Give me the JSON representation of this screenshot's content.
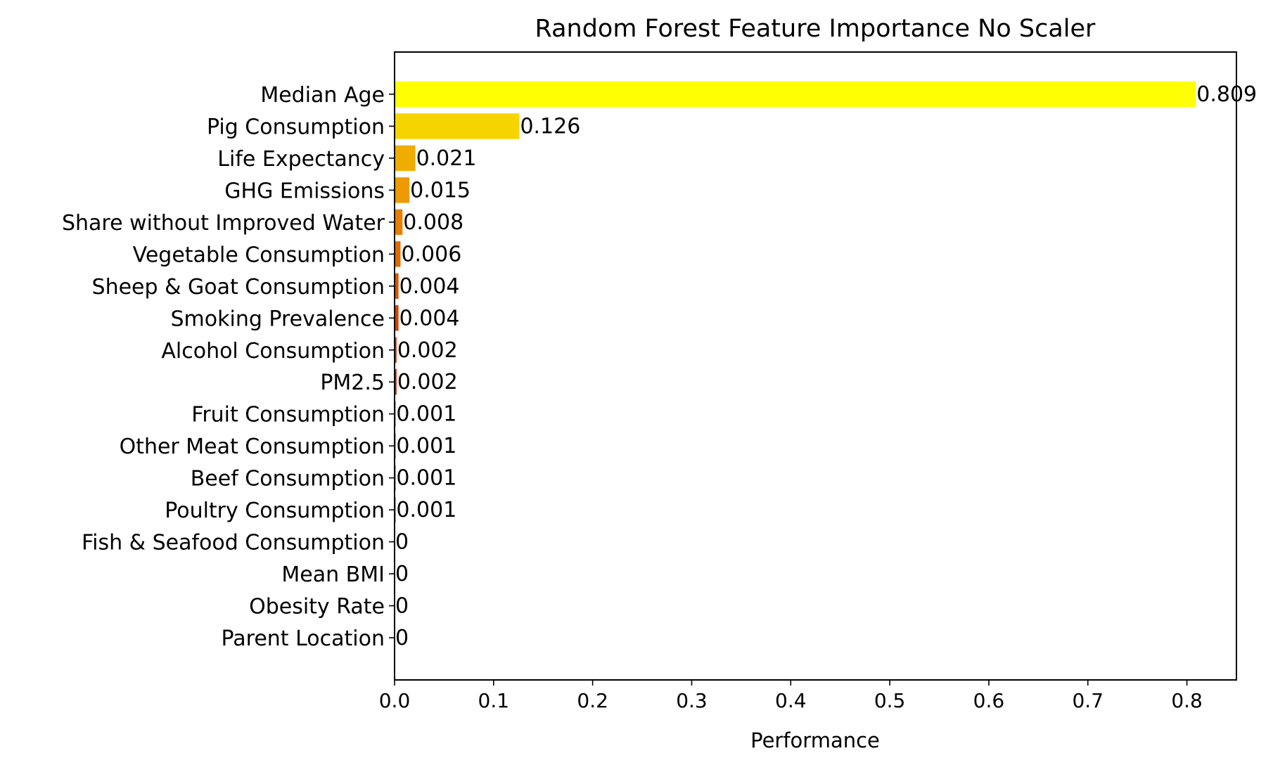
{
  "chart_data": {
    "type": "bar",
    "orientation": "horizontal",
    "title": "Random Forest Feature Importance No Scaler",
    "xlabel": "Performance",
    "ylabel": "",
    "xlim": [
      0,
      0.85
    ],
    "xticks": [
      "0.0",
      "0.1",
      "0.2",
      "0.3",
      "0.4",
      "0.5",
      "0.6",
      "0.7",
      "0.8"
    ],
    "grid": false,
    "legend": "none",
    "categories": [
      "Median Age",
      "Pig Consumption",
      "Life Expectancy",
      "GHG Emissions",
      "Share without Improved Water",
      "Vegetable Consumption",
      "Sheep & Goat Consumption",
      "Smoking Prevalence",
      "Alcohol Consumption",
      "PM2.5",
      "Fruit Consumption",
      "Other Meat Consumption",
      "Beef Consumption",
      "Poultry Consumption",
      "Fish & Seafood Consumption",
      "Mean BMI",
      "Obesity Rate",
      "Parent Location"
    ],
    "values": [
      0.809,
      0.126,
      0.021,
      0.015,
      0.008,
      0.006,
      0.004,
      0.004,
      0.002,
      0.002,
      0.001,
      0.001,
      0.001,
      0.001,
      0,
      0,
      0,
      0
    ],
    "value_labels": [
      "0.809",
      "0.126",
      "0.021",
      "0.015",
      "0.008",
      "0.006",
      "0.004",
      "0.004",
      "0.002",
      "0.002",
      "0.001",
      "0.001",
      "0.001",
      "0.001",
      "0",
      "0",
      "0",
      "0"
    ],
    "colors": [
      "#ffff00",
      "#f6d400",
      "#f0ac00",
      "#ee9a00",
      "#e77f00",
      "#e06a00",
      "#d85500",
      "#d04400",
      "#c63300",
      "#bc2200",
      "#b01500",
      "#a51000",
      "#990900",
      "#8e0400",
      "#850200",
      "#7c0000",
      "#730000",
      "#6a0000"
    ]
  }
}
